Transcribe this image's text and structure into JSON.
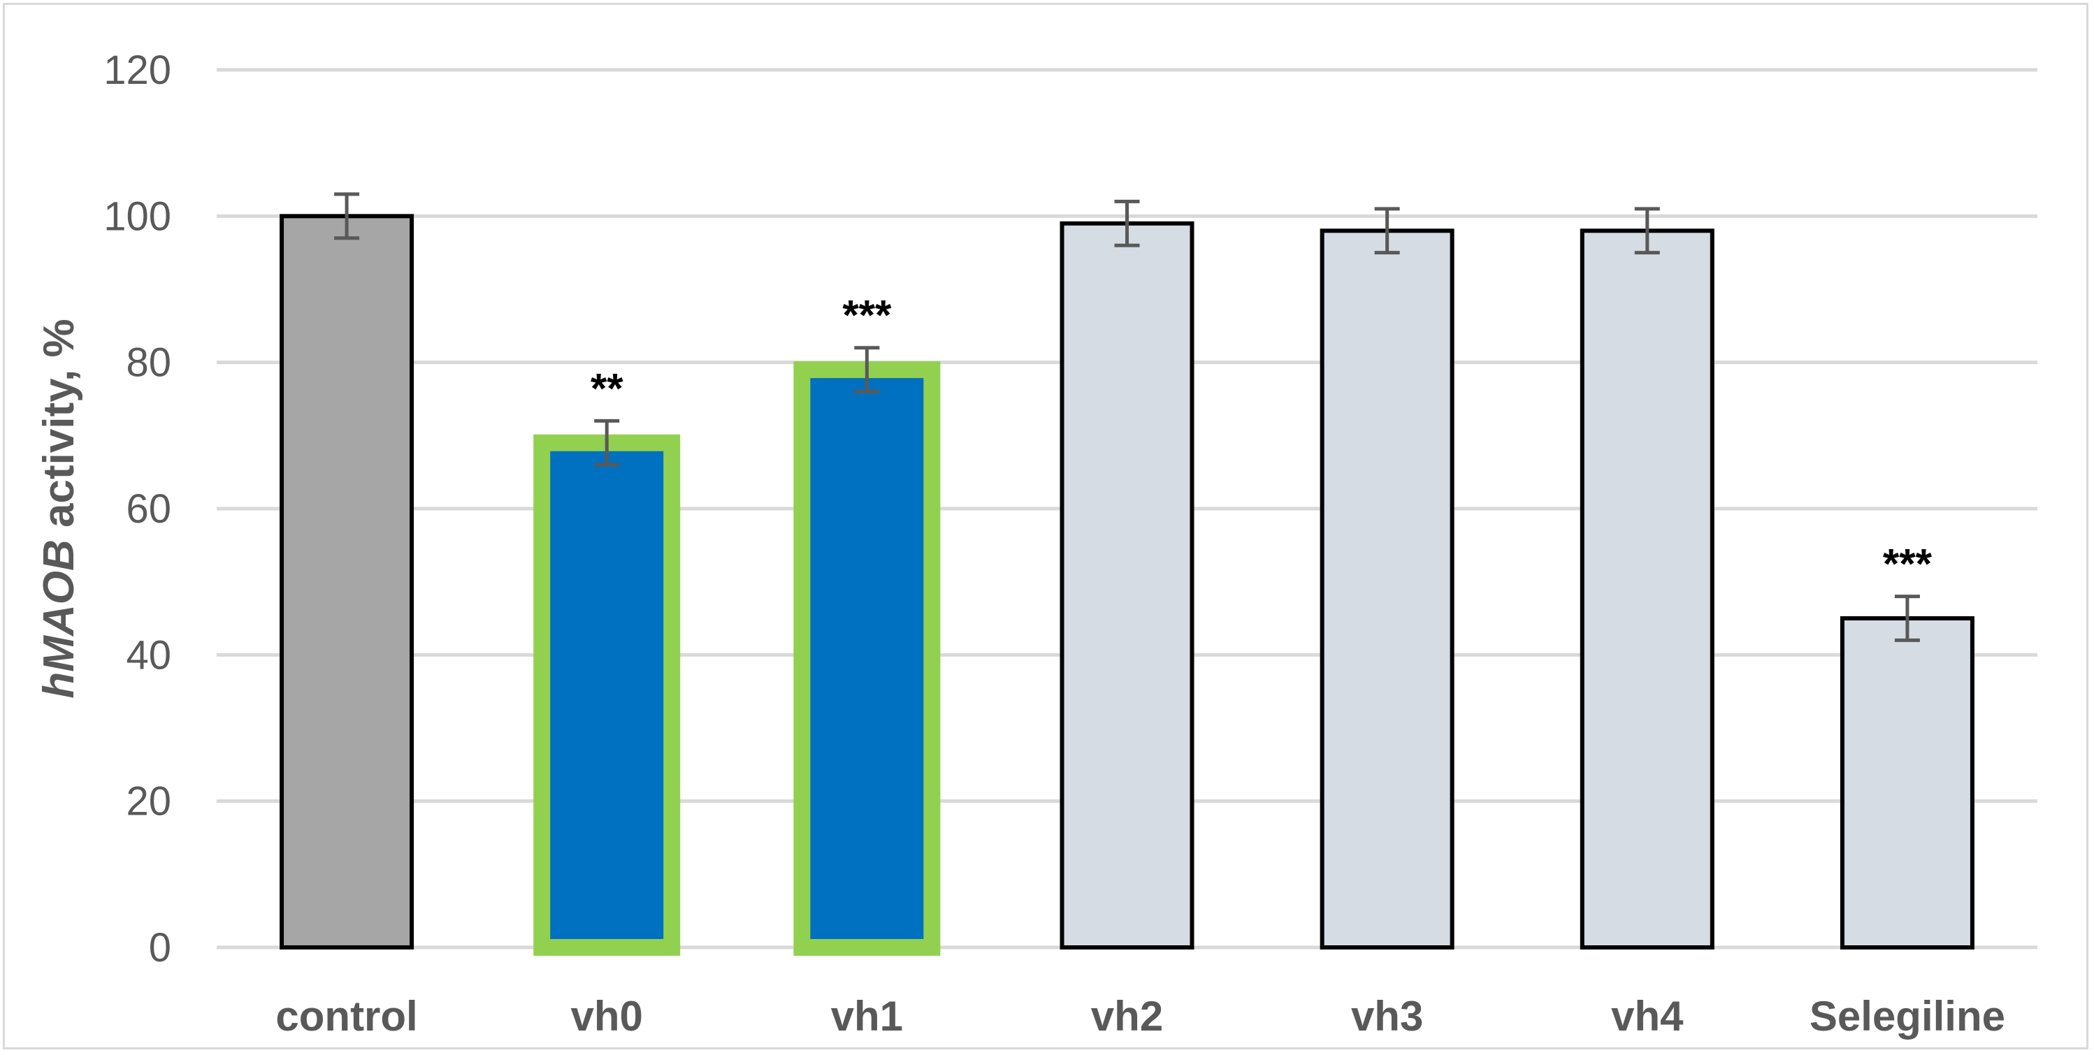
{
  "chart_data": {
    "type": "bar",
    "title": "",
    "xlabel": "",
    "ylabel_parts": [
      {
        "text": "hMAOB",
        "italic": true
      },
      {
        "text": " activity, %",
        "italic": false
      }
    ],
    "ylim": [
      0,
      120
    ],
    "yticks": [
      0,
      20,
      40,
      60,
      80,
      100,
      120
    ],
    "grid": true,
    "categories": [
      "control",
      "vh0",
      "vh1",
      "vh2",
      "vh3",
      "vh4",
      "Selegiline"
    ],
    "values": [
      100,
      69,
      79,
      99,
      98,
      98,
      45
    ],
    "errors": [
      3,
      3,
      3,
      3,
      3,
      3,
      3
    ],
    "significance": [
      "",
      "**",
      "***",
      "",
      "",
      "",
      "***"
    ],
    "fill_colors": [
      "#a6a6a6",
      "#0070c0",
      "#0070c0",
      "#d6dce4",
      "#d6dce4",
      "#d6dce4",
      "#d6dce4"
    ],
    "border_colors": [
      "#000000",
      "#92d050",
      "#92d050",
      "#000000",
      "#000000",
      "#000000",
      "#000000"
    ],
    "colors": {
      "gridline": "#d9d9d9",
      "axis_text": "#595959",
      "error_bar": "#595959"
    }
  }
}
